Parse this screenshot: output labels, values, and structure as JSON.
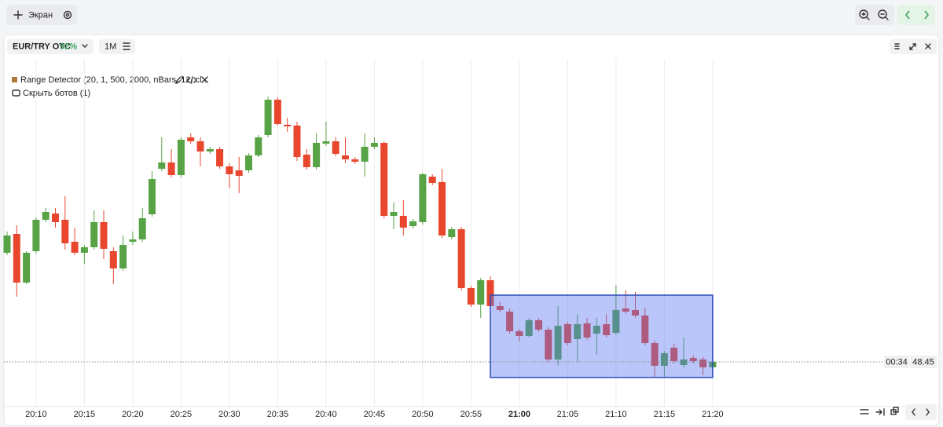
{
  "toolbar": {
    "screen_button": "Экран"
  },
  "chart_header": {
    "symbol": "EUR/TRY OTC",
    "payout": "92%",
    "timeframe": "1M"
  },
  "indicator": {
    "label": "Range Detector (20, 1, 500, 2000, nBars, 12, cl...",
    "hide_bots": "Скрыть ботов (1)"
  },
  "chart_data": {
    "type": "candlestick",
    "categories": [
      null,
      null,
      null,
      "20:10",
      null,
      null,
      null,
      null,
      "20:15",
      null,
      null,
      null,
      null,
      "20:20",
      null,
      null,
      null,
      null,
      "20:25",
      null,
      null,
      null,
      null,
      "20:30",
      null,
      null,
      null,
      null,
      "20:35",
      null,
      null,
      null,
      null,
      "20:40",
      null,
      null,
      null,
      null,
      "20:45",
      null,
      null,
      null,
      null,
      "20:50",
      null,
      null,
      null,
      null,
      "20:55",
      null,
      null,
      null,
      null,
      "21:00",
      null,
      null,
      null,
      null,
      "21:05",
      null,
      null,
      null,
      null,
      "21:10",
      null,
      null,
      null,
      null,
      "21:15",
      null,
      null,
      null,
      null,
      "21:20"
    ],
    "open": [
      48.589,
      48.613,
      48.551,
      48.591,
      48.631,
      48.639,
      48.631,
      48.603,
      48.589,
      48.596,
      48.628,
      48.591,
      48.569,
      48.603,
      48.606,
      48.638,
      48.696,
      48.704,
      48.688,
      48.736,
      48.731,
      48.718,
      48.721,
      48.699,
      48.694,
      48.694,
      48.713,
      48.739,
      48.784,
      48.752,
      48.751,
      48.714,
      48.698,
      48.728,
      48.731,
      48.713,
      48.708,
      48.705,
      48.724,
      48.729,
      48.636,
      48.636,
      48.623,
      48.628,
      48.686,
      48.679,
      48.609,
      48.619,
      48.544,
      48.523,
      48.554,
      48.521,
      48.514,
      48.489,
      48.483,
      48.503,
      48.491,
      48.453,
      48.498,
      48.479,
      48.499,
      48.486,
      48.498,
      48.487,
      48.518,
      48.516,
      48.509,
      48.474,
      48.445,
      48.468,
      48.446,
      48.455,
      48.453,
      48.443
    ],
    "high": [
      48.616,
      48.624,
      48.591,
      48.634,
      48.646,
      48.646,
      48.661,
      48.621,
      48.599,
      48.643,
      48.643,
      48.596,
      48.611,
      48.616,
      48.646,
      48.693,
      48.736,
      48.721,
      48.736,
      48.741,
      48.736,
      48.724,
      48.724,
      48.703,
      48.711,
      48.716,
      48.739,
      48.788,
      48.787,
      48.761,
      48.756,
      48.721,
      48.741,
      48.756,
      48.736,
      48.736,
      48.711,
      48.741,
      48.736,
      48.731,
      48.653,
      48.656,
      48.632,
      48.691,
      48.689,
      48.696,
      48.622,
      48.622,
      48.547,
      48.557,
      48.559,
      48.526,
      48.518,
      48.492,
      48.506,
      48.506,
      48.494,
      48.521,
      48.501,
      48.511,
      48.506,
      48.506,
      48.511,
      48.548,
      48.541,
      48.539,
      48.519,
      48.477,
      48.464,
      48.473,
      48.481,
      48.458,
      48.456,
      48.453
    ],
    "low": [
      48.586,
      48.533,
      48.549,
      48.588,
      48.628,
      48.621,
      48.593,
      48.586,
      48.575,
      48.593,
      48.581,
      48.549,
      48.566,
      48.599,
      48.603,
      48.635,
      48.693,
      48.685,
      48.685,
      48.728,
      48.699,
      48.715,
      48.696,
      48.671,
      48.665,
      48.691,
      48.711,
      48.736,
      48.751,
      48.743,
      48.706,
      48.695,
      48.695,
      48.725,
      48.712,
      48.703,
      48.702,
      48.686,
      48.721,
      48.633,
      48.619,
      48.611,
      48.62,
      48.625,
      48.675,
      48.608,
      48.606,
      48.541,
      48.52,
      48.506,
      48.518,
      48.513,
      48.486,
      48.476,
      48.481,
      48.488,
      48.45,
      48.446,
      48.471,
      48.451,
      48.478,
      48.459,
      48.481,
      48.484,
      48.511,
      48.506,
      48.471,
      48.431,
      48.431,
      48.448,
      48.443,
      48.448,
      48.433,
      48.441
    ],
    "close": [
      48.611,
      48.551,
      48.589,
      48.631,
      48.641,
      48.628,
      48.601,
      48.589,
      48.596,
      48.628,
      48.594,
      48.569,
      48.599,
      48.606,
      48.633,
      48.683,
      48.704,
      48.688,
      48.733,
      48.731,
      48.718,
      48.721,
      48.699,
      48.689,
      48.687,
      48.713,
      48.736,
      48.784,
      48.753,
      48.75,
      48.711,
      48.698,
      48.729,
      48.731,
      48.715,
      48.708,
      48.705,
      48.724,
      48.729,
      48.636,
      48.641,
      48.621,
      48.629,
      48.689,
      48.678,
      48.611,
      48.619,
      48.544,
      48.523,
      48.554,
      48.521,
      48.516,
      48.489,
      48.483,
      48.503,
      48.491,
      48.453,
      48.496,
      48.474,
      48.498,
      48.481,
      48.496,
      48.484,
      48.516,
      48.514,
      48.509,
      48.474,
      48.445,
      48.461,
      48.451,
      48.453,
      48.451,
      48.443,
      48.45
    ],
    "up_color": "#57a345",
    "down_color": "#e8472e",
    "ylim": [
      48.393,
      48.836
    ],
    "grid": true,
    "current_price": 48.45,
    "countdown": "00:34",
    "range_box": {
      "start_index": 50,
      "end_index": 73,
      "high": 48.535,
      "low": 48.43,
      "color": "#5a78f0",
      "border_color": "#2b4bb8"
    }
  }
}
